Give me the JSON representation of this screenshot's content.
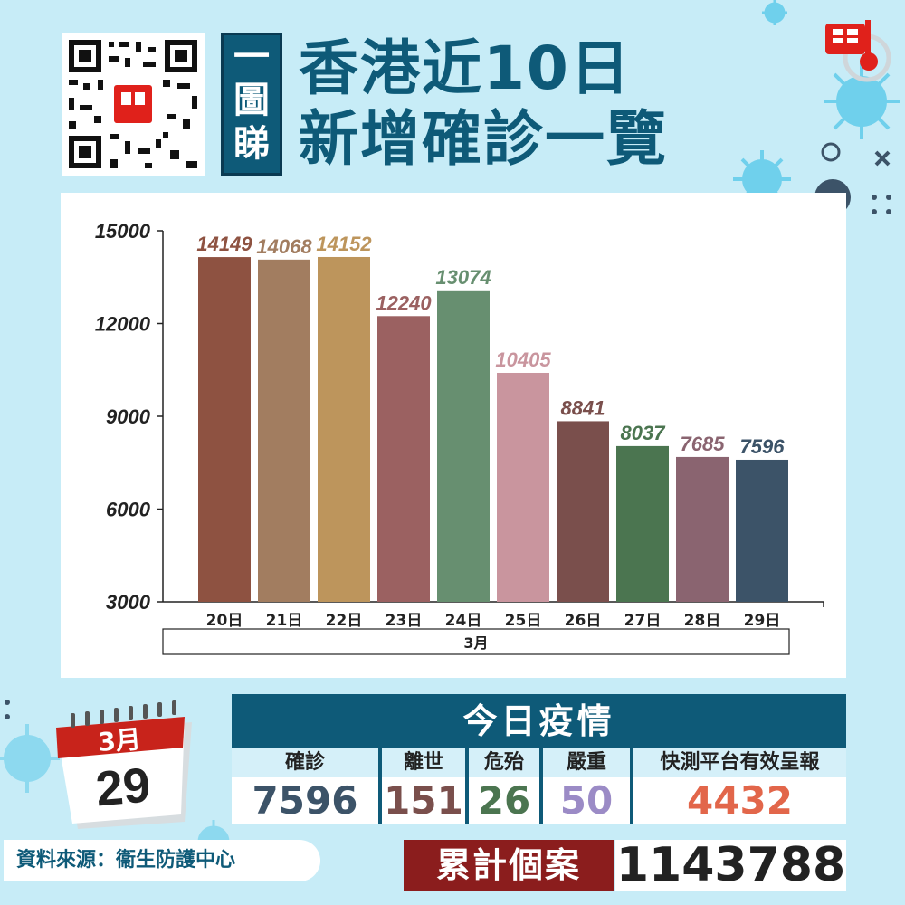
{
  "header": {
    "badge_chars": [
      "一",
      "圖",
      "睇"
    ],
    "title_line1": "香港近10日",
    "title_line2": "新增確診一覽"
  },
  "chart_data": {
    "type": "bar",
    "categories": [
      "20日",
      "21日",
      "22日",
      "23日",
      "24日",
      "25日",
      "26日",
      "27日",
      "28日",
      "29日"
    ],
    "group_label": "3月",
    "values": [
      14149,
      14068,
      14152,
      12240,
      13074,
      10405,
      8841,
      8037,
      7685,
      7596
    ],
    "colors": [
      "#8e5241",
      "#a27d60",
      "#bd955c",
      "#9b6161",
      "#678f70",
      "#c9959e",
      "#7a4f4c",
      "#4b7550",
      "#8a6470",
      "#3c5368"
    ],
    "label_colors": [
      "#8e5241",
      "#a27d60",
      "#bd955c",
      "#9b6161",
      "#678f70",
      "#c9959e",
      "#7a4f4c",
      "#4b7550",
      "#8a6470",
      "#3c5368"
    ],
    "yticks": [
      3000,
      6000,
      9000,
      12000,
      15000
    ],
    "ylim": [
      3000,
      15000
    ]
  },
  "calendar": {
    "month": "3月",
    "day": "29"
  },
  "today": {
    "title": "今日疫情",
    "stats": [
      {
        "label": "確診",
        "value": "7596",
        "color": "#3c5368"
      },
      {
        "label": "離世",
        "value": "151",
        "color": "#7a4f4c"
      },
      {
        "label": "危殆",
        "value": "26",
        "color": "#4b7550"
      },
      {
        "label": "嚴重",
        "value": "50",
        "color": "#9b8bc6"
      },
      {
        "label": "快測平台有效呈報",
        "value": "4432",
        "color": "#e2664a"
      }
    ]
  },
  "source": "資料來源：衞生防護中心",
  "cumulative": {
    "label": "累計個案",
    "value": "1143788"
  }
}
